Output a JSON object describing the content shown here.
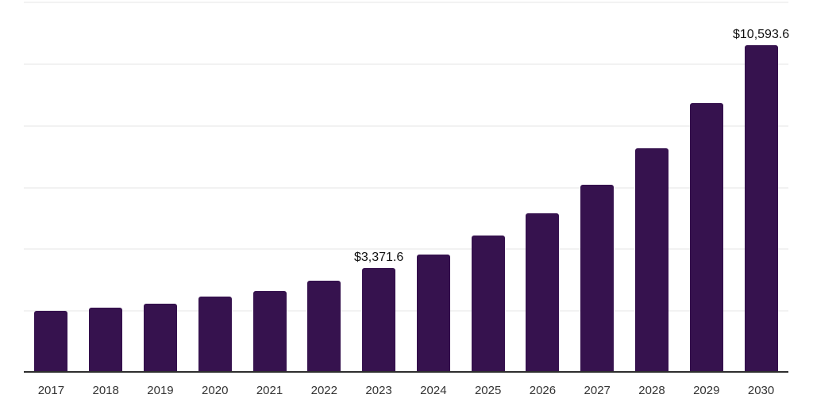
{
  "chart": {
    "background_color": "#ffffff",
    "bar_color": "#36124E",
    "grid_color": "#f2f2f2",
    "axis_color": "#2e2e2e",
    "tick_label_color": "#333333",
    "data_label_color": "#111111"
  },
  "chart_data": {
    "type": "bar",
    "title": "",
    "xlabel": "",
    "ylabel": "",
    "categories": [
      "2017",
      "2018",
      "2019",
      "2020",
      "2021",
      "2022",
      "2023",
      "2024",
      "2025",
      "2026",
      "2027",
      "2028",
      "2029",
      "2030"
    ],
    "values": [
      1990,
      2070,
      2220,
      2430,
      2630,
      2960,
      3371.6,
      3815,
      4430,
      5150,
      6070,
      7255,
      8705,
      10593.6
    ],
    "data_labels": [
      {
        "index": 6,
        "text": "$3,371.6"
      },
      {
        "index": 13,
        "text": "$10,593.6"
      }
    ],
    "ylim": [
      0,
      12000
    ],
    "grid_step": 2000,
    "grid": true,
    "legend": "none",
    "y_axis_tick_labels_visible": false
  }
}
